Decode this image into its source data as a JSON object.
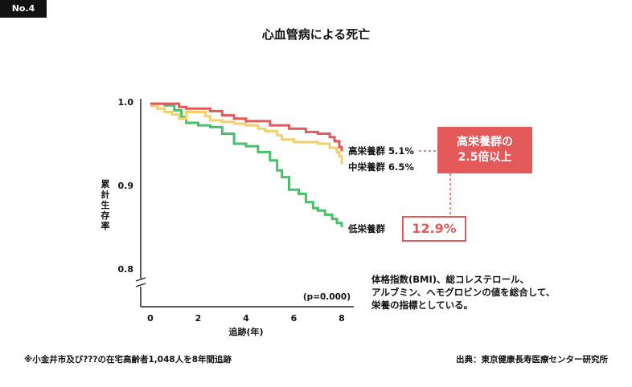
{
  "badge": "No.4",
  "title": "心血管病による死亡",
  "note_lines": [
    "体格指数(BMI)、総コレステロール、",
    "アルブミン、ヘモグロビンの値を総合して、",
    "栄養の指標としている。"
  ],
  "footnote_left": "※小金井市及び???の在宅高齢者1,048人を8年間追跡",
  "footnote_right": "出典：東京健康長寿医療センター研究所",
  "callouts": {
    "high_line1": "高栄養群の",
    "high_line2": "2.5倍以上",
    "low": "12.9%"
  },
  "colors": {
    "accent": "#e35858",
    "high": "#e35858",
    "middle": "#f5cf6b",
    "low": "#48c06a"
  },
  "chart_data": {
    "type": "line",
    "subtype": "step (Kaplan-Meier survival)",
    "title": "心血管病による死亡",
    "xlabel": "追跡(年)",
    "ylabel": "累計生存率",
    "xlim": [
      0,
      8
    ],
    "ylim": [
      0.8,
      1.0
    ],
    "y_axis_break": true,
    "x_ticks": [
      0,
      2,
      4,
      6,
      8
    ],
    "x_tick_labels": [
      "0",
      "2",
      "4",
      "6",
      "8"
    ],
    "y_ticks": [
      0.8,
      0.9,
      1.0
    ],
    "y_tick_labels": [
      "0.8",
      "0.9",
      "1.0"
    ],
    "annotation": "(p=0.000)",
    "grid": false,
    "series": [
      {
        "name": "高栄養群",
        "label": "高栄養群 5.1%",
        "color": "#e35858",
        "points": [
          [
            0,
            0.998
          ],
          [
            0.5,
            0.998
          ],
          [
            1.2,
            0.994
          ],
          [
            1.5,
            0.992
          ],
          [
            2.0,
            0.992
          ],
          [
            2.5,
            0.989
          ],
          [
            3.0,
            0.984
          ],
          [
            3.5,
            0.98
          ],
          [
            4.0,
            0.977
          ],
          [
            5.0,
            0.972
          ],
          [
            5.8,
            0.968
          ],
          [
            6.5,
            0.964
          ],
          [
            7.0,
            0.962
          ],
          [
            7.5,
            0.958
          ],
          [
            7.7,
            0.953
          ],
          [
            7.9,
            0.946
          ],
          [
            8.0,
            0.941
          ]
        ]
      },
      {
        "name": "中栄養群",
        "label": "中栄養群 6.5%",
        "color": "#f5cf6b",
        "points": [
          [
            0,
            0.995
          ],
          [
            0.3,
            0.992
          ],
          [
            0.6,
            0.988
          ],
          [
            0.9,
            0.985
          ],
          [
            1.2,
            0.98
          ],
          [
            1.5,
            0.988
          ],
          [
            2.0,
            0.988
          ],
          [
            2.3,
            0.983
          ],
          [
            2.5,
            0.978
          ],
          [
            3.0,
            0.976
          ],
          [
            3.5,
            0.974
          ],
          [
            4.0,
            0.972
          ],
          [
            4.5,
            0.968
          ],
          [
            4.8,
            0.965
          ],
          [
            5.3,
            0.96
          ],
          [
            5.5,
            0.955
          ],
          [
            6.0,
            0.952
          ],
          [
            6.5,
            0.952
          ],
          [
            7.0,
            0.95
          ],
          [
            7.5,
            0.945
          ],
          [
            7.8,
            0.94
          ],
          [
            7.9,
            0.935
          ],
          [
            8.0,
            0.925
          ]
        ]
      },
      {
        "name": "低栄養群",
        "label": "低栄養群",
        "color": "#48c06a",
        "points": [
          [
            0,
            0.998
          ],
          [
            0.3,
            0.998
          ],
          [
            0.6,
            0.996
          ],
          [
            1.0,
            0.99
          ],
          [
            1.3,
            0.982
          ],
          [
            1.5,
            0.975
          ],
          [
            2.0,
            0.972
          ],
          [
            2.5,
            0.97
          ],
          [
            3.0,
            0.962
          ],
          [
            3.5,
            0.95
          ],
          [
            4.0,
            0.947
          ],
          [
            4.5,
            0.94
          ],
          [
            5.0,
            0.93
          ],
          [
            5.3,
            0.918
          ],
          [
            5.5,
            0.91
          ],
          [
            5.8,
            0.895
          ],
          [
            6.2,
            0.89
          ],
          [
            6.5,
            0.88
          ],
          [
            6.8,
            0.873
          ],
          [
            7.0,
            0.87
          ],
          [
            7.3,
            0.865
          ],
          [
            7.6,
            0.86
          ],
          [
            7.8,
            0.855
          ],
          [
            8.0,
            0.85
          ]
        ]
      }
    ]
  }
}
